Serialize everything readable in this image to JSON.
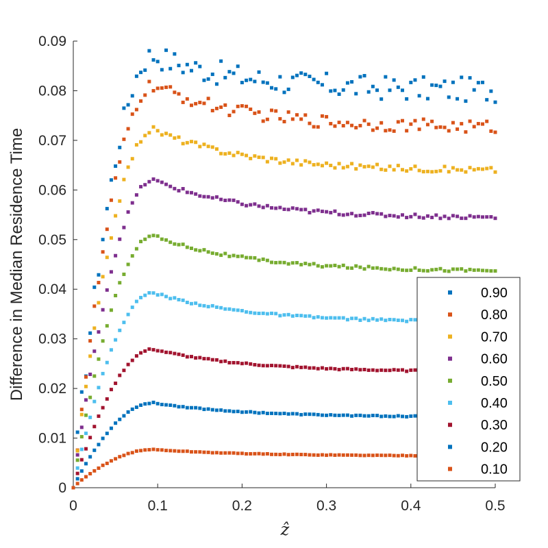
{
  "chart_data": {
    "type": "scatter",
    "xlabel": "ẑ",
    "ylabel": "Difference in Median Residence Time",
    "xlim": [
      0,
      0.5
    ],
    "ylim": [
      0,
      0.09
    ],
    "x_ticks": [
      "0",
      "0.1",
      "0.2",
      "0.3",
      "0.4",
      "0.5"
    ],
    "y_ticks": [
      "0",
      "0.01",
      "0.02",
      "0.03",
      "0.04",
      "0.05",
      "0.06",
      "0.07",
      "0.08",
      "0.09"
    ],
    "legend_position": "bottom-right",
    "series": [
      {
        "name": "0.90",
        "color": "#0072BD",
        "profile": {
          "peak": 0.0872,
          "plateau": 0.08,
          "noise": 0.0025
        }
      },
      {
        "name": "0.80",
        "color": "#D95319",
        "profile": {
          "peak": 0.081,
          "plateau": 0.0725,
          "noise": 0.0013
        }
      },
      {
        "name": "0.70",
        "color": "#EDB120",
        "profile": {
          "peak": 0.0722,
          "plateau": 0.0638,
          "noise": 0.0006
        }
      },
      {
        "name": "0.60",
        "color": "#7E2F8E",
        "profile": {
          "peak": 0.062,
          "plateau": 0.0543,
          "noise": 0.0004
        }
      },
      {
        "name": "0.50",
        "color": "#77AC30",
        "profile": {
          "peak": 0.0508,
          "plateau": 0.0436,
          "noise": 0.0003
        }
      },
      {
        "name": "0.40",
        "color": "#4DBEEE",
        "profile": {
          "peak": 0.0393,
          "plateau": 0.0333,
          "noise": 0.0002
        }
      },
      {
        "name": "0.30",
        "color": "#A2142F",
        "profile": {
          "peak": 0.0279,
          "plateau": 0.0233,
          "noise": 0.00015
        }
      },
      {
        "name": "0.20",
        "color": "#0072BD",
        "profile": {
          "peak": 0.0171,
          "plateau": 0.0142,
          "noise": 0.0001
        }
      },
      {
        "name": "0.10",
        "color": "#D95319",
        "profile": {
          "peak": 0.0077,
          "plateau": 0.0064,
          "noise": 6e-05
        }
      }
    ]
  }
}
